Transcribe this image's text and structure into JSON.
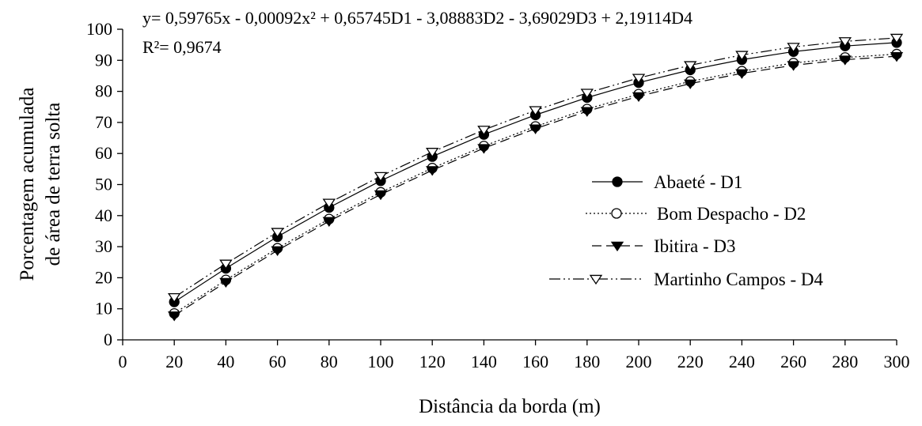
{
  "chart_data": {
    "type": "line",
    "xlabel": "Distância da borda (m)",
    "ylabel_lines": [
      "Porcentagem acumulada",
      "de área de terra solta"
    ],
    "annotations": [
      "y= 0,59765x - 0,00092x² + 0,65745D1 - 3,08883D2 - 3,69029D3 + 2,19114D4",
      "R²= 0,9674"
    ],
    "xlim": [
      0,
      300
    ],
    "ylim": [
      0,
      100
    ],
    "x_ticks": [
      0,
      20,
      40,
      60,
      80,
      100,
      120,
      140,
      160,
      180,
      200,
      220,
      240,
      260,
      280,
      300
    ],
    "y_ticks": [
      0,
      10,
      20,
      30,
      40,
      50,
      60,
      70,
      80,
      90,
      100
    ],
    "grid": false,
    "legend_position": "center-right",
    "x": [
      20,
      40,
      60,
      80,
      100,
      120,
      140,
      160,
      180,
      200,
      220,
      240,
      260,
      280,
      300
    ],
    "series": [
      {
        "name": "Abaeté - D1",
        "marker": "filled-circle",
        "dash": "solid",
        "values": [
          12.2,
          23.0,
          33.2,
          42.6,
          51.2,
          59.0,
          66.1,
          72.4,
          78.0,
          82.8,
          86.9,
          90.2,
          92.8,
          94.6,
          95.7
        ]
      },
      {
        "name": "Bom Despacho - D2",
        "marker": "open-circle",
        "dash": "dotted",
        "values": [
          8.5,
          19.3,
          29.5,
          38.9,
          47.5,
          55.3,
          62.4,
          68.7,
          74.3,
          79.1,
          83.2,
          86.5,
          89.1,
          90.9,
          92.0
        ]
      },
      {
        "name": "Ibitira - D3",
        "marker": "filled-triangle-down",
        "dash": "dashed",
        "values": [
          7.8,
          18.6,
          28.8,
          38.2,
          46.8,
          54.6,
          61.7,
          68.0,
          73.6,
          78.4,
          82.5,
          85.8,
          88.4,
          90.2,
          91.3
        ]
      },
      {
        "name": "Martinho Campos - D4",
        "marker": "open-triangle-down",
        "dash": "dash-dot-dot",
        "values": [
          13.7,
          24.5,
          34.7,
          44.1,
          52.7,
          60.5,
          67.6,
          73.9,
          79.5,
          84.3,
          88.4,
          91.7,
          94.3,
          96.1,
          97.2
        ]
      }
    ]
  }
}
